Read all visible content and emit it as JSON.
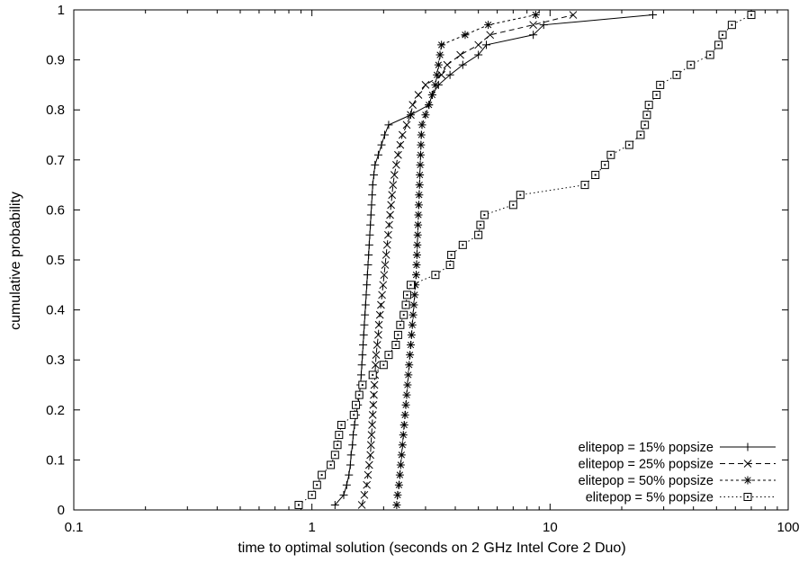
{
  "chart_data": {
    "type": "line",
    "title": "",
    "xlabel": "time to optimal solution (seconds on 2 GHz Intel Core 2 Duo)",
    "ylabel": "cumulative probability",
    "xscale": "log",
    "xlim": [
      0.1,
      100
    ],
    "ylim": [
      0,
      1
    ],
    "x_ticks": [
      0.1,
      1,
      10,
      100
    ],
    "x_tick_labels": [
      "0.1",
      "1",
      "10",
      "100"
    ],
    "y_ticks": [
      0,
      0.1,
      0.2,
      0.3,
      0.4,
      0.5,
      0.6,
      0.7,
      0.8,
      0.9,
      1
    ],
    "y_tick_labels": [
      "0",
      "0.1",
      "0.2",
      "0.3",
      "0.4",
      "0.5",
      "0.6",
      "0.7",
      "0.8",
      "0.9",
      "1"
    ],
    "grid": false,
    "legend_position": "bottom-right",
    "series": [
      {
        "name": "elitepop = 15% popsize",
        "marker": "plus",
        "dash": "",
        "points": [
          [
            1.25,
            0.01
          ],
          [
            1.36,
            0.03
          ],
          [
            1.4,
            0.05
          ],
          [
            1.43,
            0.07
          ],
          [
            1.45,
            0.09
          ],
          [
            1.46,
            0.11
          ],
          [
            1.48,
            0.13
          ],
          [
            1.49,
            0.15
          ],
          [
            1.51,
            0.17
          ],
          [
            1.53,
            0.19
          ],
          [
            1.56,
            0.21
          ],
          [
            1.58,
            0.23
          ],
          [
            1.6,
            0.25
          ],
          [
            1.61,
            0.27
          ],
          [
            1.62,
            0.29
          ],
          [
            1.63,
            0.31
          ],
          [
            1.64,
            0.33
          ],
          [
            1.65,
            0.35
          ],
          [
            1.66,
            0.37
          ],
          [
            1.67,
            0.39
          ],
          [
            1.68,
            0.41
          ],
          [
            1.69,
            0.43
          ],
          [
            1.7,
            0.45
          ],
          [
            1.71,
            0.47
          ],
          [
            1.72,
            0.49
          ],
          [
            1.73,
            0.51
          ],
          [
            1.74,
            0.53
          ],
          [
            1.75,
            0.55
          ],
          [
            1.76,
            0.57
          ],
          [
            1.77,
            0.59
          ],
          [
            1.78,
            0.61
          ],
          [
            1.79,
            0.63
          ],
          [
            1.8,
            0.65
          ],
          [
            1.82,
            0.67
          ],
          [
            1.84,
            0.69
          ],
          [
            1.9,
            0.71
          ],
          [
            1.96,
            0.73
          ],
          [
            2.02,
            0.75
          ],
          [
            2.1,
            0.77
          ],
          [
            2.6,
            0.79
          ],
          [
            3.1,
            0.81
          ],
          [
            3.2,
            0.83
          ],
          [
            3.4,
            0.85
          ],
          [
            3.8,
            0.87
          ],
          [
            4.3,
            0.89
          ],
          [
            5.0,
            0.91
          ],
          [
            5.4,
            0.93
          ],
          [
            8.5,
            0.95
          ],
          [
            9.4,
            0.97
          ],
          [
            27,
            0.99
          ]
        ]
      },
      {
        "name": "elitepop = 25% popsize",
        "marker": "cross",
        "dash": "6,4",
        "points": [
          [
            1.62,
            0.01
          ],
          [
            1.66,
            0.03
          ],
          [
            1.7,
            0.05
          ],
          [
            1.72,
            0.07
          ],
          [
            1.74,
            0.09
          ],
          [
            1.76,
            0.11
          ],
          [
            1.77,
            0.13
          ],
          [
            1.78,
            0.15
          ],
          [
            1.79,
            0.17
          ],
          [
            1.8,
            0.19
          ],
          [
            1.81,
            0.21
          ],
          [
            1.82,
            0.23
          ],
          [
            1.83,
            0.25
          ],
          [
            1.84,
            0.27
          ],
          [
            1.85,
            0.29
          ],
          [
            1.86,
            0.31
          ],
          [
            1.88,
            0.33
          ],
          [
            1.9,
            0.35
          ],
          [
            1.91,
            0.37
          ],
          [
            1.93,
            0.39
          ],
          [
            1.95,
            0.41
          ],
          [
            1.97,
            0.43
          ],
          [
            1.99,
            0.45
          ],
          [
            2.01,
            0.47
          ],
          [
            2.03,
            0.49
          ],
          [
            2.05,
            0.51
          ],
          [
            2.07,
            0.53
          ],
          [
            2.09,
            0.55
          ],
          [
            2.11,
            0.57
          ],
          [
            2.13,
            0.59
          ],
          [
            2.15,
            0.61
          ],
          [
            2.17,
            0.63
          ],
          [
            2.19,
            0.65
          ],
          [
            2.22,
            0.67
          ],
          [
            2.26,
            0.69
          ],
          [
            2.3,
            0.71
          ],
          [
            2.35,
            0.73
          ],
          [
            2.4,
            0.75
          ],
          [
            2.5,
            0.77
          ],
          [
            2.6,
            0.79
          ],
          [
            2.65,
            0.81
          ],
          [
            2.8,
            0.83
          ],
          [
            3.0,
            0.85
          ],
          [
            3.5,
            0.87
          ],
          [
            3.7,
            0.89
          ],
          [
            4.2,
            0.91
          ],
          [
            5.0,
            0.93
          ],
          [
            5.6,
            0.95
          ],
          [
            8.5,
            0.97
          ],
          [
            12.5,
            0.99
          ]
        ]
      },
      {
        "name": "elitepop = 50% popsize",
        "marker": "star",
        "dash": "3,3",
        "points": [
          [
            2.27,
            0.01
          ],
          [
            2.29,
            0.03
          ],
          [
            2.32,
            0.05
          ],
          [
            2.34,
            0.07
          ],
          [
            2.36,
            0.09
          ],
          [
            2.38,
            0.11
          ],
          [
            2.4,
            0.13
          ],
          [
            2.42,
            0.15
          ],
          [
            2.44,
            0.17
          ],
          [
            2.46,
            0.19
          ],
          [
            2.48,
            0.21
          ],
          [
            2.5,
            0.23
          ],
          [
            2.52,
            0.25
          ],
          [
            2.54,
            0.27
          ],
          [
            2.56,
            0.29
          ],
          [
            2.58,
            0.31
          ],
          [
            2.6,
            0.33
          ],
          [
            2.62,
            0.35
          ],
          [
            2.64,
            0.37
          ],
          [
            2.66,
            0.39
          ],
          [
            2.68,
            0.41
          ],
          [
            2.7,
            0.43
          ],
          [
            2.72,
            0.45
          ],
          [
            2.74,
            0.47
          ],
          [
            2.75,
            0.49
          ],
          [
            2.76,
            0.51
          ],
          [
            2.77,
            0.53
          ],
          [
            2.78,
            0.55
          ],
          [
            2.79,
            0.57
          ],
          [
            2.8,
            0.59
          ],
          [
            2.81,
            0.61
          ],
          [
            2.82,
            0.63
          ],
          [
            2.83,
            0.65
          ],
          [
            2.84,
            0.67
          ],
          [
            2.85,
            0.69
          ],
          [
            2.86,
            0.71
          ],
          [
            2.87,
            0.73
          ],
          [
            2.88,
            0.75
          ],
          [
            2.9,
            0.77
          ],
          [
            3.0,
            0.79
          ],
          [
            3.1,
            0.81
          ],
          [
            3.2,
            0.83
          ],
          [
            3.3,
            0.85
          ],
          [
            3.35,
            0.87
          ],
          [
            3.4,
            0.89
          ],
          [
            3.45,
            0.91
          ],
          [
            3.5,
            0.93
          ],
          [
            4.4,
            0.95
          ],
          [
            5.5,
            0.97
          ],
          [
            8.7,
            0.99
          ]
        ]
      },
      {
        "name": "elitepop = 5% popsize",
        "marker": "box",
        "dash": "1.5,3",
        "points": [
          [
            0.88,
            0.01
          ],
          [
            1.0,
            0.03
          ],
          [
            1.05,
            0.05
          ],
          [
            1.1,
            0.07
          ],
          [
            1.2,
            0.09
          ],
          [
            1.25,
            0.11
          ],
          [
            1.28,
            0.13
          ],
          [
            1.3,
            0.15
          ],
          [
            1.33,
            0.17
          ],
          [
            1.5,
            0.19
          ],
          [
            1.53,
            0.21
          ],
          [
            1.58,
            0.23
          ],
          [
            1.63,
            0.25
          ],
          [
            1.8,
            0.27
          ],
          [
            2.0,
            0.29
          ],
          [
            2.1,
            0.31
          ],
          [
            2.25,
            0.33
          ],
          [
            2.3,
            0.35
          ],
          [
            2.35,
            0.37
          ],
          [
            2.43,
            0.39
          ],
          [
            2.48,
            0.41
          ],
          [
            2.51,
            0.43
          ],
          [
            2.6,
            0.45
          ],
          [
            3.3,
            0.47
          ],
          [
            3.8,
            0.49
          ],
          [
            3.85,
            0.51
          ],
          [
            4.3,
            0.53
          ],
          [
            5.0,
            0.55
          ],
          [
            5.1,
            0.57
          ],
          [
            5.3,
            0.59
          ],
          [
            7.0,
            0.61
          ],
          [
            7.5,
            0.63
          ],
          [
            14,
            0.65
          ],
          [
            15.5,
            0.67
          ],
          [
            17,
            0.69
          ],
          [
            18,
            0.71
          ],
          [
            21.5,
            0.73
          ],
          [
            24,
            0.75
          ],
          [
            25,
            0.77
          ],
          [
            25.5,
            0.79
          ],
          [
            26,
            0.81
          ],
          [
            28,
            0.83
          ],
          [
            29,
            0.85
          ],
          [
            34,
            0.87
          ],
          [
            39,
            0.89
          ],
          [
            47,
            0.91
          ],
          [
            51,
            0.93
          ],
          [
            53,
            0.95
          ],
          [
            58,
            0.97
          ],
          [
            70,
            0.99
          ]
        ]
      }
    ]
  }
}
